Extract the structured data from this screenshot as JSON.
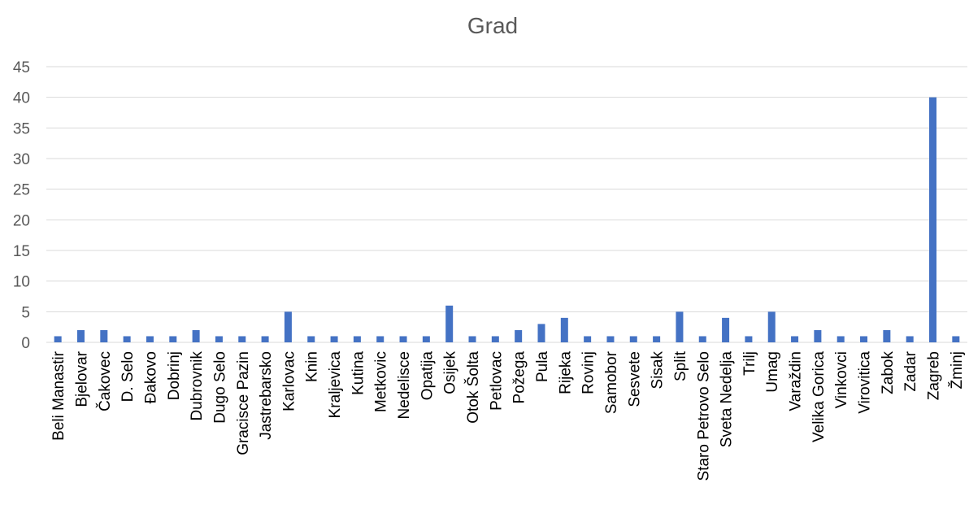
{
  "chart_data": {
    "type": "bar",
    "title": "Grad",
    "xlabel": "",
    "ylabel": "",
    "ylim": [
      0,
      45
    ],
    "y_ticks": [
      "0",
      "5",
      "10",
      "15",
      "20",
      "25",
      "30",
      "35",
      "40",
      "45"
    ],
    "grid": true,
    "legend": "none",
    "bar_color": "#4472C4",
    "categories": [
      "Beli Manastir",
      "Bjelovar",
      "Čakovec",
      "D. Selo",
      "Đakovo",
      "Dobrinj",
      "Dubrovnik",
      "Dugo Selo",
      "Gracisce Pazin",
      "Jastrebarsko",
      "Karlovac",
      "Knin",
      "Kraljevica",
      "Kutina",
      "Metkovic",
      "Nedelisce",
      "Opatija",
      "Osijek",
      "Otok Šolta",
      "Petlovac",
      "Požega",
      "Pula",
      "Rijeka",
      "Rovinj",
      "Samobor",
      "Sesvete",
      "Sisak",
      "Split",
      "Staro Petrovo Selo",
      "Sveta Nedelja",
      "Trilj",
      "Umag",
      "Varaždin",
      "Velika Gorica",
      "Vinkovci",
      "Virovitica",
      "Zabok",
      "Zadar",
      "Zagreb",
      "Žminj"
    ],
    "values": [
      1,
      2,
      2,
      1,
      1,
      1,
      2,
      1,
      1,
      1,
      5,
      1,
      1,
      1,
      1,
      1,
      1,
      6,
      1,
      1,
      2,
      3,
      4,
      1,
      1,
      1,
      1,
      5,
      1,
      4,
      1,
      5,
      1,
      2,
      1,
      1,
      2,
      1,
      40,
      1
    ]
  }
}
